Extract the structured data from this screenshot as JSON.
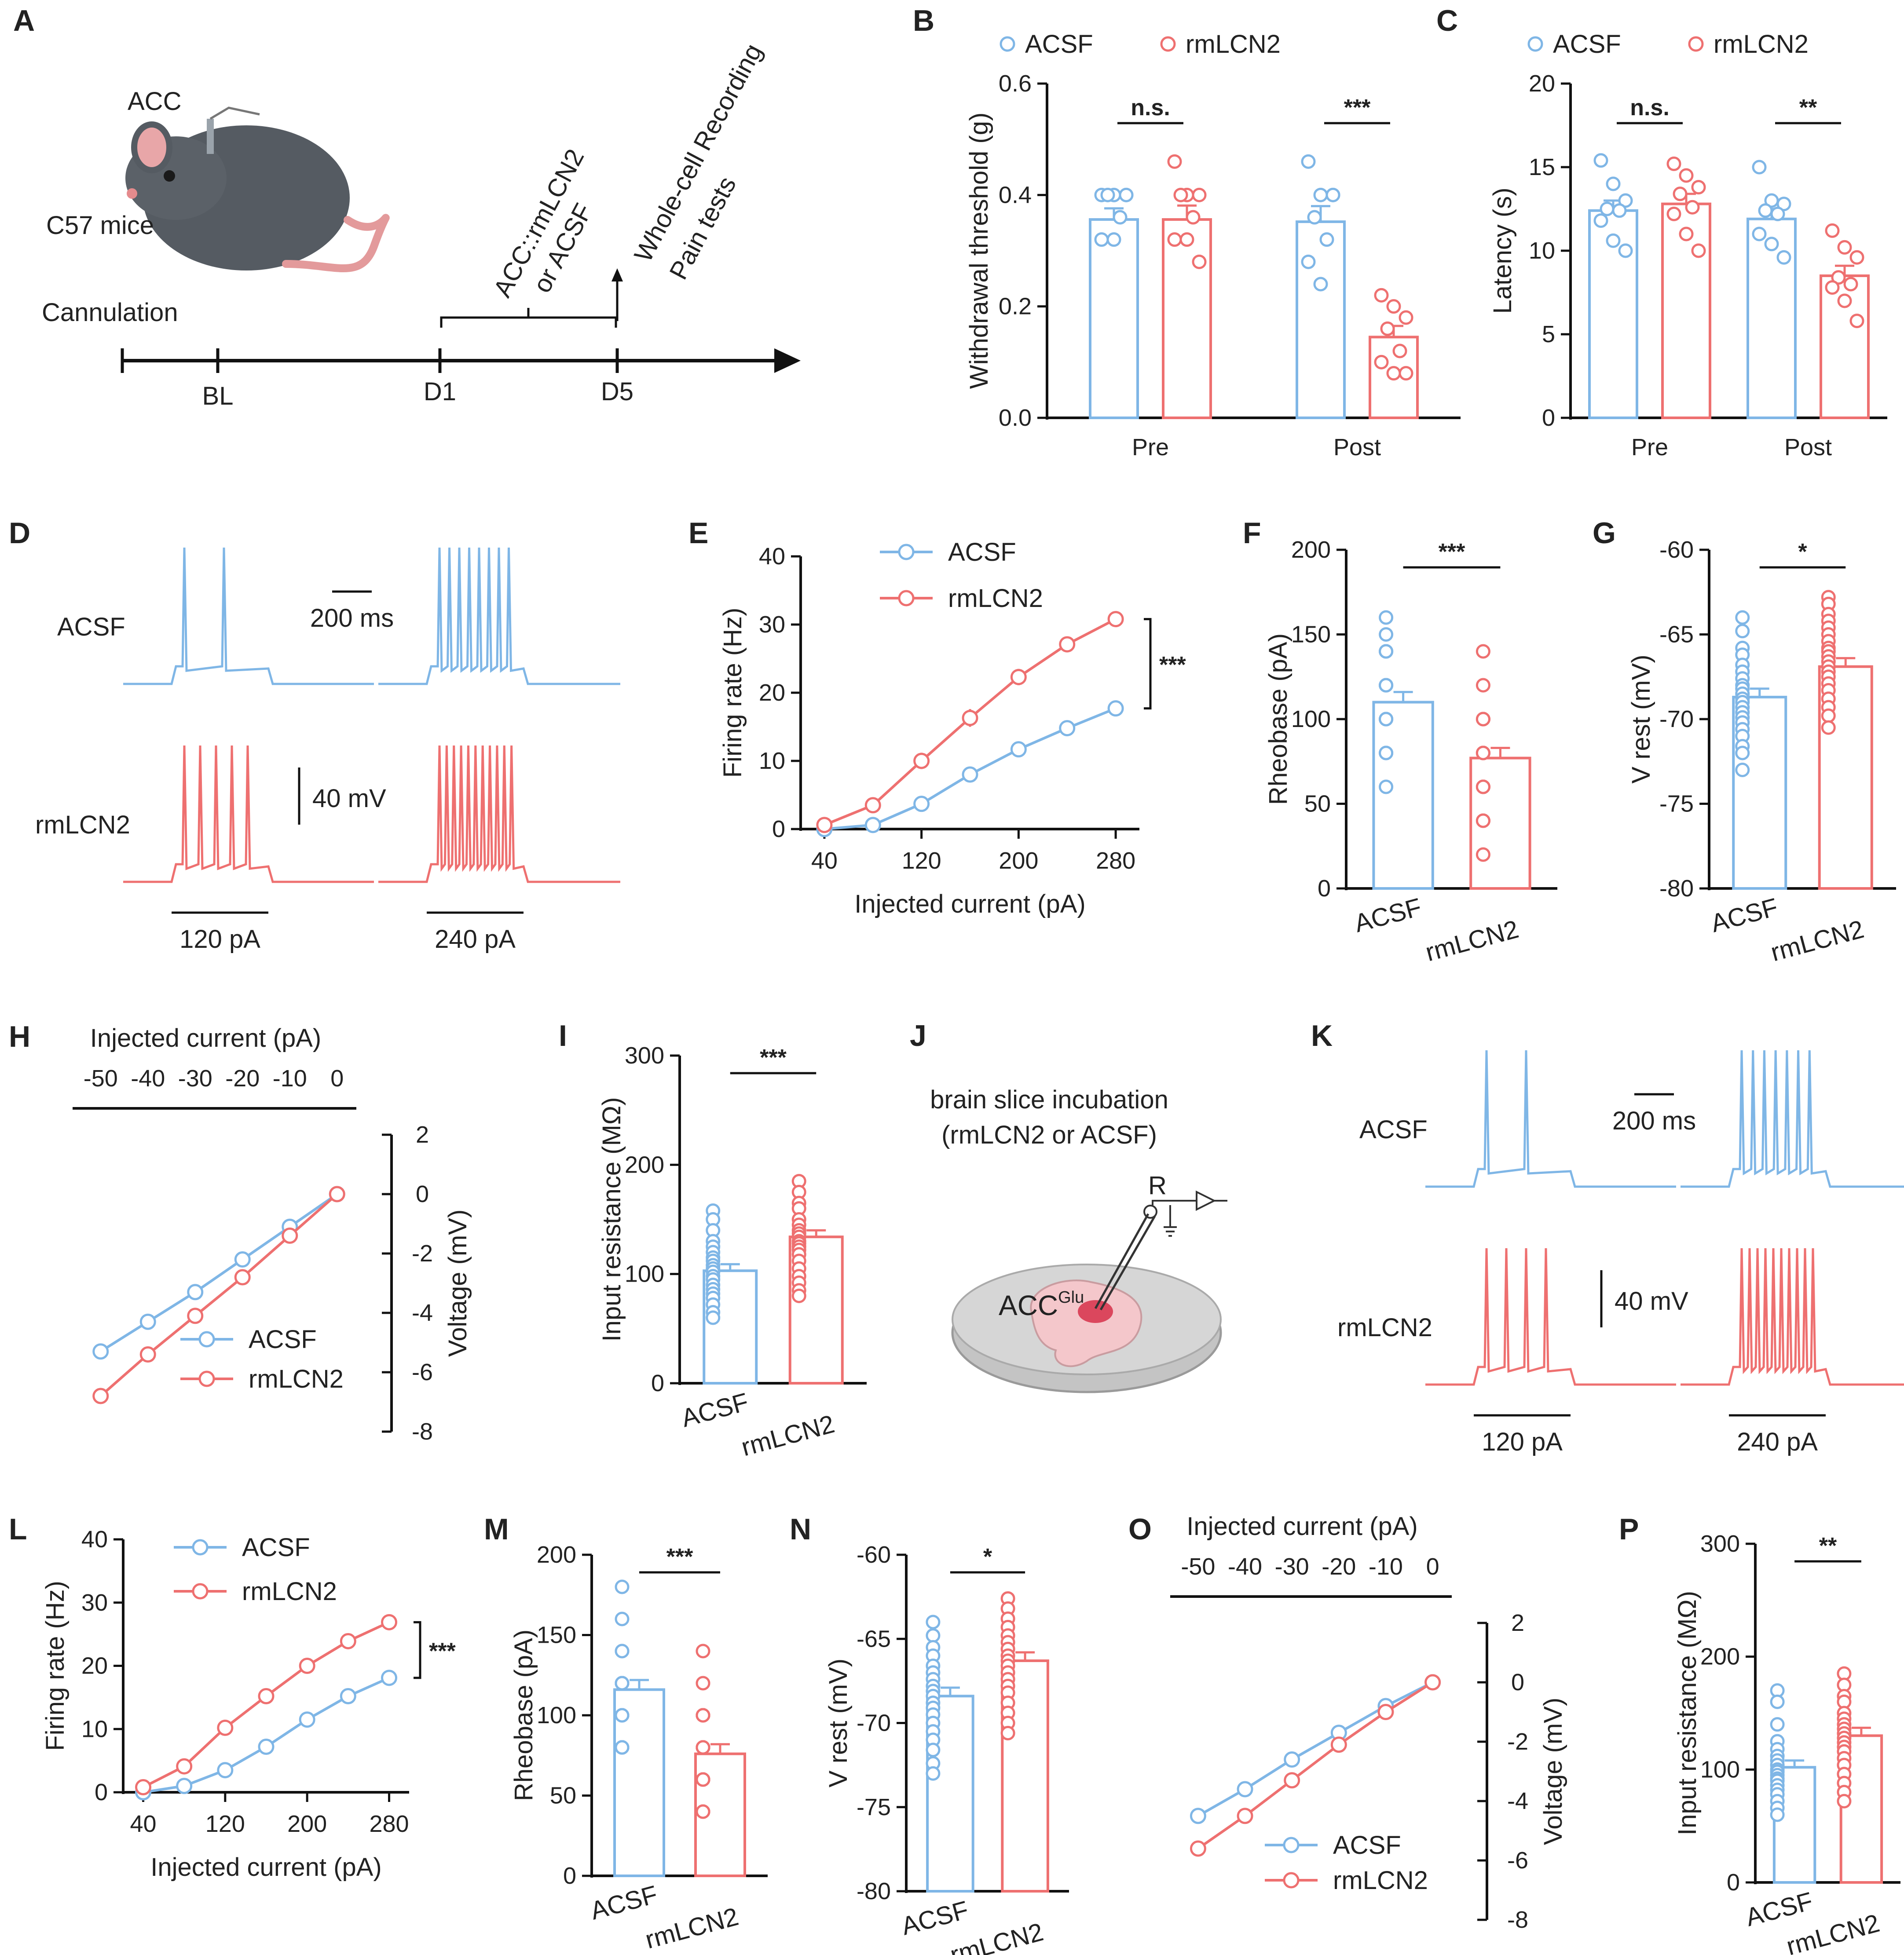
{
  "colors": {
    "acsf": "#7fb6e6",
    "rmlcn2": "#ee7070",
    "axis": "#111111",
    "dish": "#d4d4d4",
    "slice": "#f6c8cc",
    "hot": "#d6304a",
    "mouse": "#555b62"
  },
  "legend": {
    "acsf": "ACSF",
    "rmlcn2": "rmLCN2"
  },
  "panelA": {
    "label": "A",
    "acc": "ACC",
    "mice": "C57 mice",
    "cannulation": "Cannulation",
    "treatment": [
      "ACC::rmLCN2",
      "or ACSF"
    ],
    "tests": [
      "Whole-cell Recording",
      "Pain tests"
    ],
    "timepoints": [
      "BL",
      "D1",
      "D5"
    ]
  },
  "panelD": {
    "label": "D",
    "row1": "ACSF",
    "row2": "rmLCN2",
    "scale_time": "200 ms",
    "scale_volt": "40 mV",
    "step1": "120 pA",
    "step2": "240 pA",
    "spikes": [
      [
        2,
        8
      ],
      [
        5,
        11
      ]
    ]
  },
  "panelK": {
    "label": "K",
    "row1": "ACSF",
    "row2": "rmLCN2",
    "scale_time": "200 ms",
    "scale_volt": "40 mV",
    "step1": "120 pA",
    "step2": "240 pA",
    "spikes": [
      [
        2,
        7
      ],
      [
        4,
        10
      ]
    ]
  },
  "panelJ": {
    "label": "J",
    "line1": "brain slice incubation",
    "line2": "(rmLCN2 or ACSF)",
    "electrode": "R",
    "region": "ACC",
    "region_sup": "Glu"
  },
  "chart_data": [
    {
      "id": "B",
      "type": "bar",
      "categories": [
        "Pre",
        "Post"
      ],
      "ylabel": "Withdrawal threshold (g)",
      "ylim": [
        0,
        0.6
      ],
      "yticks": [
        "0.0",
        "0.2",
        "0.4",
        "0.6"
      ],
      "series": [
        {
          "name": "ACSF",
          "values": [
            0.356,
            0.352
          ],
          "sem": [
            0.02,
            0.028
          ],
          "points": [
            [
              0.4,
              0.4,
              0.4,
              0.4,
              0.36,
              0.32,
              0.32,
              0.4
            ],
            [
              0.46,
              0.4,
              0.4,
              0.36,
              0.32,
              0.28,
              0.24,
              0.4
            ]
          ]
        },
        {
          "name": "rmLCN2",
          "values": [
            0.356,
            0.145
          ],
          "sem": [
            0.025,
            0.02
          ],
          "points": [
            [
              0.46,
              0.4,
              0.4,
              0.4,
              0.36,
              0.32,
              0.32,
              0.28
            ],
            [
              0.22,
              0.2,
              0.18,
              0.16,
              0.12,
              0.1,
              0.08,
              0.08
            ]
          ]
        }
      ],
      "sig": [
        "n.s.",
        "***"
      ]
    },
    {
      "id": "C",
      "type": "bar",
      "categories": [
        "Pre",
        "Post"
      ],
      "ylabel": "Latency (s)",
      "ylim": [
        0,
        20
      ],
      "yticks": [
        "0",
        "5",
        "10",
        "15",
        "20"
      ],
      "series": [
        {
          "name": "ACSF",
          "values": [
            12.4,
            11.9
          ],
          "sem": [
            0.6,
            0.6
          ],
          "points": [
            [
              15.4,
              14,
              13,
              12.5,
              12.4,
              11.8,
              10.6,
              10.0
            ],
            [
              15.0,
              13.0,
              12.8,
              12.4,
              12.2,
              11.0,
              10.4,
              9.6
            ]
          ]
        },
        {
          "name": "rmLCN2",
          "values": [
            12.8,
            8.5
          ],
          "sem": [
            0.6,
            0.6
          ],
          "points": [
            [
              15.2,
              14.5,
              13.8,
              13.4,
              12.6,
              12.2,
              11.0,
              10.0
            ],
            [
              11.2,
              10.2,
              9.6,
              8.4,
              8.0,
              7.8,
              7.0,
              5.8
            ]
          ]
        }
      ],
      "sig": [
        "n.s.",
        "**"
      ]
    },
    {
      "id": "E",
      "type": "line",
      "x": [
        40,
        80,
        120,
        160,
        200,
        240,
        280
      ],
      "xticks": [
        "40",
        "120",
        "200",
        "280"
      ],
      "xlabel": "Injected current (pA)",
      "ylabel": "Firing rate (Hz)",
      "ylim": [
        0,
        40
      ],
      "yticks": [
        "0",
        "10",
        "20",
        "30",
        "40"
      ],
      "series": [
        {
          "name": "ACSF",
          "values": [
            0,
            0.6,
            3.7,
            8.0,
            11.7,
            14.8,
            17.7
          ],
          "sem": [
            0.2,
            0.2,
            0.3,
            0.4,
            0.5,
            0.5,
            0.5
          ]
        },
        {
          "name": "rmLCN2",
          "values": [
            0.6,
            3.5,
            10.0,
            16.3,
            22.3,
            27.1,
            30.8
          ],
          "sem": [
            0.3,
            0.8,
            1.2,
            1.3,
            1.2,
            1.0,
            1.0
          ]
        }
      ],
      "sig": "***"
    },
    {
      "id": "F",
      "type": "bar",
      "categories": [
        "ACSF",
        "rmLCN2"
      ],
      "ylabel": "Rheobase (pA)",
      "ylim": [
        0,
        200
      ],
      "yticks": [
        "0",
        "50",
        "100",
        "150",
        "200"
      ],
      "values": [
        110,
        77
      ],
      "sem": [
        6,
        6
      ],
      "points": [
        [
          160,
          150,
          140,
          140,
          140,
          140,
          140,
          120,
          120,
          120,
          120,
          120,
          100,
          100,
          100,
          100,
          100,
          80,
          80,
          80,
          60
        ],
        [
          140,
          120,
          100,
          100,
          100,
          100,
          80,
          80,
          80,
          80,
          80,
          80,
          80,
          60,
          60,
          60,
          60,
          40,
          40,
          40,
          20
        ]
      ],
      "sig": "***"
    },
    {
      "id": "G",
      "type": "bar",
      "categories": [
        "ACSF",
        "rmLCN2"
      ],
      "ylabel": "V rest (mV)",
      "ylim": [
        -80,
        -60
      ],
      "yticks": [
        "-80",
        "-75",
        "-70",
        "-65",
        "-60"
      ],
      "values": [
        -68.7,
        -66.9
      ],
      "sem": [
        0.5,
        0.5
      ],
      "points": [
        [
          -64.0,
          -64.8,
          -65.8,
          -66.2,
          -66.8,
          -67.2,
          -67.6,
          -68.0,
          -68.2,
          -68.5,
          -68.8,
          -69.0,
          -69.3,
          -69.6,
          -69.9,
          -70.2,
          -70.6,
          -71.0,
          -71.6,
          -72.0,
          -73.0
        ],
        [
          -62.8,
          -63.2,
          -63.8,
          -64.2,
          -64.6,
          -65.0,
          -65.4,
          -65.8,
          -66.0,
          -66.3,
          -66.6,
          -66.9,
          -67.2,
          -67.5,
          -67.9,
          -68.3,
          -68.8,
          -69.3,
          -69.8,
          -70.5
        ]
      ],
      "sig": "*"
    },
    {
      "id": "H",
      "type": "line",
      "x": [
        -50,
        -40,
        -30,
        -20,
        -10,
        0
      ],
      "xticks": [
        "-50",
        "-40",
        "-30",
        "-20",
        "-10",
        "0"
      ],
      "xlabel": "Injected current (pA)",
      "ylabel": "Voltage (mV)",
      "ylim": [
        -8,
        2
      ],
      "yticks": [
        "-8",
        "-6",
        "-4",
        "-2",
        "0",
        "2"
      ],
      "series": [
        {
          "name": "ACSF",
          "values": [
            -5.3,
            -4.3,
            -3.3,
            -2.2,
            -1.1,
            0
          ],
          "sem": [
            0.25,
            0.15,
            0.12,
            0.1,
            0.08,
            0.05
          ]
        },
        {
          "name": "rmLCN2",
          "values": [
            -6.8,
            -5.4,
            -4.1,
            -2.8,
            -1.4,
            0
          ],
          "sem": [
            0.25,
            0.15,
            0.12,
            0.1,
            0.08,
            0.05
          ]
        }
      ]
    },
    {
      "id": "I",
      "type": "bar",
      "categories": [
        "ACSF",
        "rmLCN2"
      ],
      "ylabel": "Input resistance (MΩ)",
      "ylim": [
        0,
        300
      ],
      "yticks": [
        "0",
        "100",
        "200",
        "300"
      ],
      "values": [
        103,
        134
      ],
      "sem": [
        6,
        6
      ],
      "points": [
        [
          158,
          150,
          140,
          130,
          125,
          120,
          115,
          112,
          108,
          105,
          102,
          98,
          95,
          90,
          86,
          82,
          78,
          72,
          65,
          60
        ],
        [
          185,
          175,
          165,
          160,
          150,
          145,
          140,
          137,
          134,
          130,
          128,
          125,
          122,
          118,
          112,
          105,
          98,
          92,
          85,
          80
        ]
      ],
      "sig": "***"
    },
    {
      "id": "L",
      "type": "line",
      "x": [
        40,
        80,
        120,
        160,
        200,
        240,
        280
      ],
      "xticks": [
        "40",
        "120",
        "200",
        "280"
      ],
      "xlabel": "Injected current (pA)",
      "ylabel": "Firing rate (Hz)",
      "ylim": [
        0,
        40
      ],
      "yticks": [
        "0",
        "10",
        "20",
        "30",
        "40"
      ],
      "series": [
        {
          "name": "ACSF",
          "values": [
            0,
            1.0,
            3.5,
            7.2,
            11.5,
            15.2,
            18.1
          ],
          "sem": [
            0.2,
            0.2,
            0.3,
            0.5,
            0.5,
            0.5,
            0.5
          ]
        },
        {
          "name": "rmLCN2",
          "values": [
            0.8,
            4.1,
            10.2,
            15.2,
            20.0,
            23.9,
            26.9
          ],
          "sem": [
            0.3,
            0.5,
            0.9,
            1.1,
            1.0,
            1.0,
            1.0
          ]
        }
      ],
      "sig": "***"
    },
    {
      "id": "M",
      "type": "bar",
      "categories": [
        "ACSF",
        "rmLCN2"
      ],
      "ylabel": "Rheobase (pA)",
      "ylim": [
        0,
        200
      ],
      "yticks": [
        "0",
        "50",
        "100",
        "150",
        "200"
      ],
      "values": [
        116,
        76
      ],
      "sem": [
        6,
        6
      ],
      "points": [
        [
          180,
          160,
          140,
          140,
          120,
          120,
          120,
          120,
          120,
          120,
          120,
          100,
          100,
          100,
          100,
          80,
          80,
          80,
          80,
          80
        ],
        [
          140,
          120,
          100,
          100,
          100,
          100,
          80,
          80,
          80,
          80,
          80,
          60,
          60,
          60,
          60,
          60,
          60,
          40,
          40,
          40
        ]
      ],
      "sig": "***"
    },
    {
      "id": "N",
      "type": "bar",
      "categories": [
        "ACSF",
        "rmLCN2"
      ],
      "ylabel": "V rest (mV)",
      "ylim": [
        -80,
        -60
      ],
      "yticks": [
        "-80",
        "-75",
        "-70",
        "-65",
        "-60"
      ],
      "values": [
        -68.4,
        -66.3
      ],
      "sem": [
        0.5,
        0.5
      ],
      "points": [
        [
          -64.0,
          -64.8,
          -65.5,
          -66.0,
          -66.6,
          -67.0,
          -67.4,
          -67.8,
          -68.1,
          -68.4,
          -68.8,
          -69.1,
          -69.5,
          -70.0,
          -70.5,
          -71.0,
          -71.6,
          -72.4,
          -73.0
        ],
        [
          -62.6,
          -63.2,
          -63.8,
          -64.3,
          -64.8,
          -65.2,
          -65.6,
          -66.0,
          -66.3,
          -66.6,
          -67.0,
          -67.4,
          -67.8,
          -68.2,
          -68.8,
          -69.4,
          -70.0,
          -70.6
        ]
      ],
      "sig": "*"
    },
    {
      "id": "O",
      "type": "line",
      "x": [
        -50,
        -40,
        -30,
        -20,
        -10,
        0
      ],
      "xticks": [
        "-50",
        "-40",
        "-30",
        "-20",
        "-10",
        "0"
      ],
      "xlabel": "Injected current (pA)",
      "ylabel": "Voltage (mV)",
      "ylim": [
        -8,
        2
      ],
      "yticks": [
        "-8",
        "-6",
        "-4",
        "-2",
        "0",
        "2"
      ],
      "series": [
        {
          "name": "ACSF",
          "values": [
            -4.5,
            -3.6,
            -2.6,
            -1.7,
            -0.8,
            0
          ],
          "sem": [
            0.25,
            0.15,
            0.12,
            0.1,
            0.08,
            0.05
          ]
        },
        {
          "name": "rmLCN2",
          "values": [
            -5.6,
            -4.5,
            -3.3,
            -2.1,
            -1.0,
            0
          ],
          "sem": [
            0.25,
            0.15,
            0.12,
            0.1,
            0.08,
            0.05
          ]
        }
      ]
    },
    {
      "id": "P",
      "type": "bar",
      "categories": [
        "ACSF",
        "rmLCN2"
      ],
      "ylabel": "Input resistance (MΩ)",
      "ylim": [
        0,
        300
      ],
      "yticks": [
        "0",
        "100",
        "200",
        "300"
      ],
      "values": [
        102,
        130
      ],
      "sem": [
        6,
        7
      ],
      "points": [
        [
          170,
          160,
          140,
          125,
          118,
          112,
          108,
          104,
          100,
          98,
          95,
          92,
          90,
          86,
          82,
          78,
          72,
          66,
          60
        ],
        [
          185,
          175,
          165,
          160,
          150,
          145,
          140,
          136,
          132,
          128,
          124,
          120,
          116,
          110,
          104,
          96,
          88,
          80,
          72
        ]
      ],
      "sig": "**"
    }
  ]
}
